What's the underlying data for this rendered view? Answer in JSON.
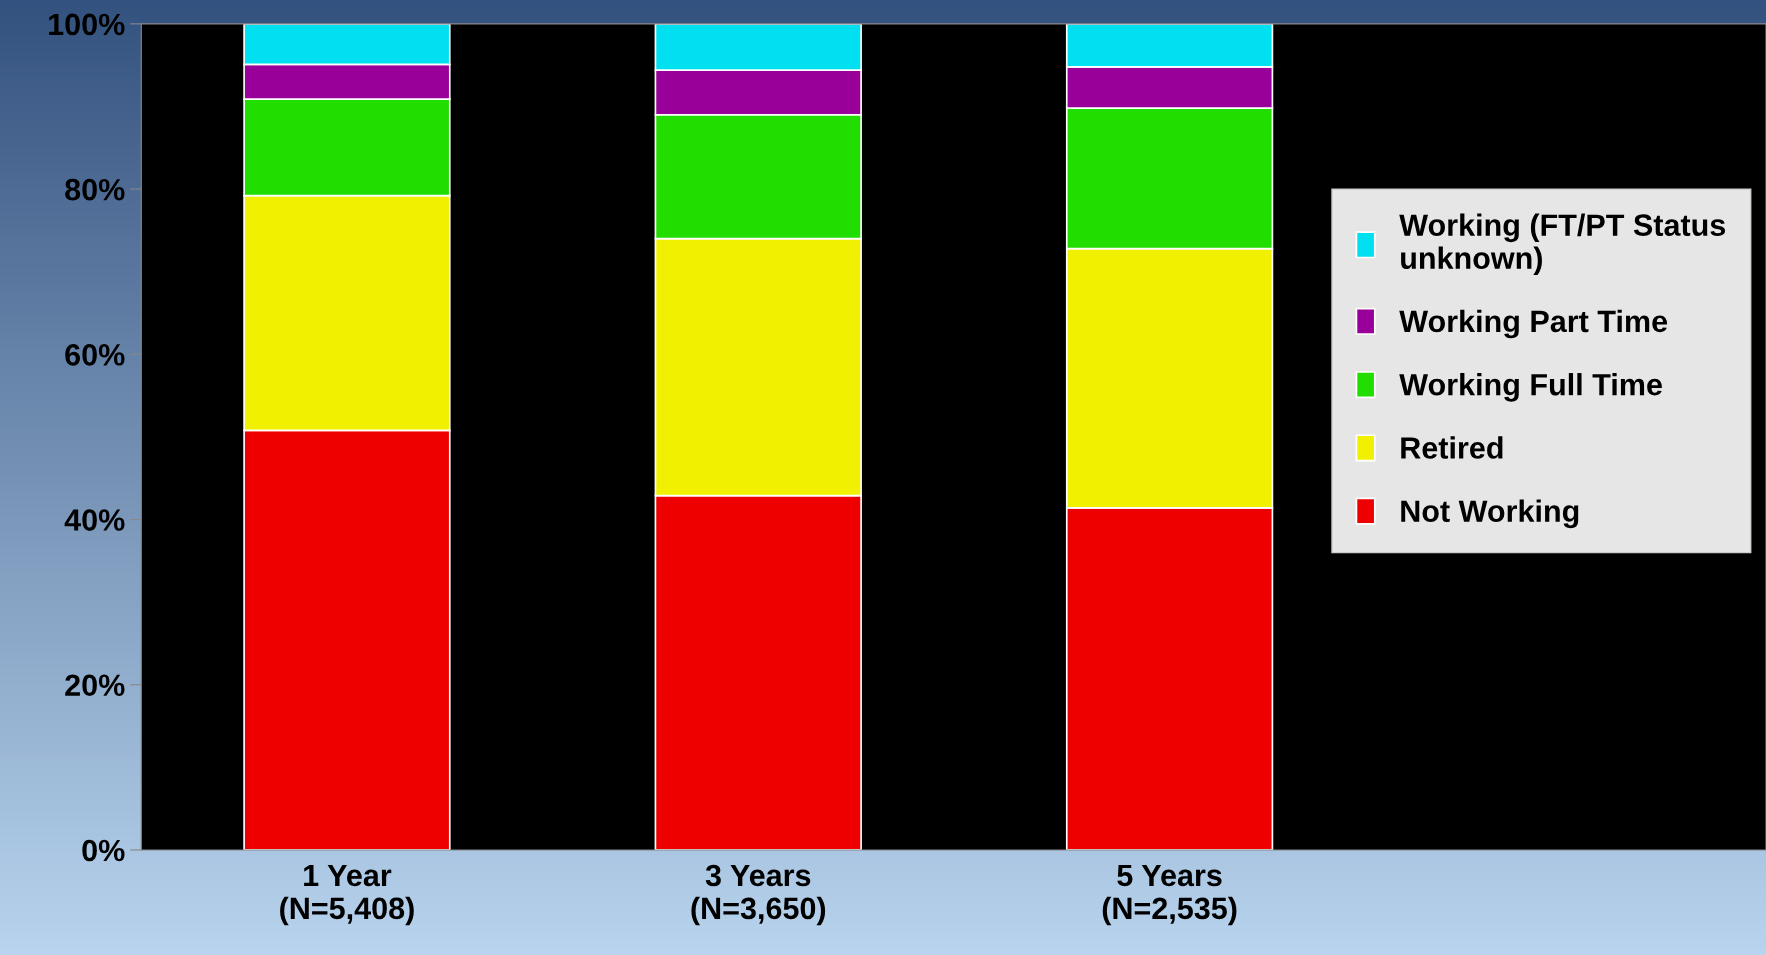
{
  "chart_data": {
    "type": "bar",
    "stacked": true,
    "categories": [
      "1 Year\n(N=5,408)",
      "3 Years\n(N=3,650)",
      "5 Years\n(N=2,535)"
    ],
    "series": [
      {
        "name": "Not Working",
        "color": "#ee0000",
        "values": [
          50.8,
          42.9,
          41.4
        ]
      },
      {
        "name": "Retired",
        "color": "#f0f000",
        "values": [
          28.4,
          31.1,
          31.4
        ]
      },
      {
        "name": "Working Full Time",
        "color": "#22dd00",
        "values": [
          11.7,
          15.0,
          17.0
        ]
      },
      {
        "name": "Working Part Time",
        "color": "#990099",
        "values": [
          4.2,
          5.4,
          5.0
        ]
      },
      {
        "name": "Working (FT/PT Status\nunknown)",
        "color": "#00e0f0",
        "values": [
          4.9,
          5.6,
          5.2
        ]
      }
    ],
    "ylim": [
      0,
      100
    ],
    "yticks": [
      {
        "value": 0,
        "label": "0%"
      },
      {
        "value": 20,
        "label": "20%"
      },
      {
        "value": 40,
        "label": "40%"
      },
      {
        "value": 60,
        "label": "60%"
      },
      {
        "value": 80,
        "label": "80%"
      },
      {
        "value": 100,
        "label": "100%"
      }
    ],
    "grid": false,
    "legend": "right"
  }
}
